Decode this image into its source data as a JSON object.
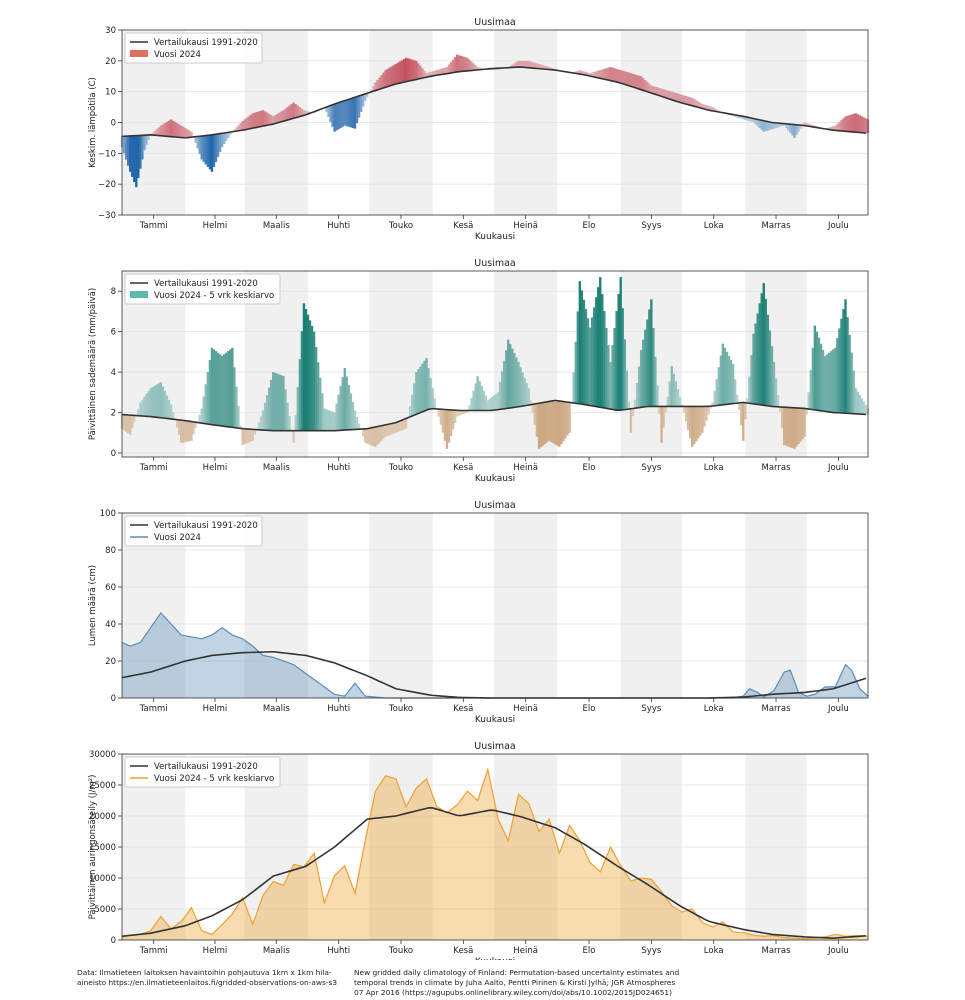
{
  "months": [
    "Tammi",
    "Helmi",
    "Maalis",
    "Huhti",
    "Touko",
    "Kesä",
    "Heinä",
    "Elo",
    "Syys",
    "Loka",
    "Marras",
    "Joulu"
  ],
  "footer": {
    "left": "Data: Ilmatieteen laitoksen havaintoihin pohjautuva 1km x 1km hila-aineisto https://en.ilmatieteenlaitos.fi/gridded-observations-on-aws-s3",
    "right": "New gridded daily climatology of Finland: Permutation-based uncertainty estimates and temporal trends in climate by Juha Aalto, Pentti Pirinen & Kirsti Jylhä; JGR Atmospheres 07 Apr 2016 (https://agupubs.onlinelibrary.wiley.com/doi/abs/10.1002/2015JD024651)"
  },
  "colors": {
    "reference": "#333333",
    "temp_warm": "#b2182b",
    "temp_cold": "#2166ac",
    "precip_wet": "#1a7f74",
    "precip_dry": "#a6611a",
    "snow": "#5b8db8",
    "sun": "#f0a030",
    "month_shade": "#f0f0f0"
  },
  "chart_data": [
    {
      "type": "area",
      "title": "Uusimaa",
      "xlabel": "Kuukausi",
      "ylabel": "Keskim. lämpötila (C)",
      "ylim": [
        -30,
        30
      ],
      "yticks": [
        -30,
        -20,
        -10,
        0,
        10,
        20,
        30
      ],
      "legend": "top-left",
      "series": [
        {
          "name": "Vertailukausi 1991-2020",
          "kind": "line",
          "x": [
            1,
            15,
            32,
            45,
            60,
            75,
            91,
            105,
            121,
            135,
            152,
            166,
            182,
            196,
            213,
            227,
            244,
            258,
            274,
            288,
            305,
            319,
            335,
            349,
            366
          ],
          "y": [
            -4.5,
            -4,
            -5,
            -4,
            -2.5,
            -0.5,
            2.5,
            6,
            9.5,
            12.5,
            15,
            16.5,
            17.5,
            18,
            17,
            15.5,
            13,
            10,
            6.5,
            4,
            2,
            0,
            -1,
            -2.5,
            -3.5
          ]
        },
        {
          "name": "Vuosi 2024",
          "kind": "anomaly",
          "x": [
            1,
            5,
            8,
            12,
            15,
            20,
            25,
            30,
            35,
            40,
            45,
            50,
            55,
            60,
            65,
            70,
            75,
            80,
            85,
            90,
            95,
            100,
            105,
            110,
            115,
            120,
            125,
            130,
            135,
            140,
            145,
            150,
            155,
            160,
            165,
            170,
            175,
            180,
            185,
            190,
            195,
            200,
            205,
            210,
            215,
            220,
            225,
            230,
            235,
            240,
            245,
            250,
            255,
            260,
            265,
            270,
            275,
            280,
            285,
            290,
            295,
            300,
            305,
            310,
            315,
            320,
            325,
            330,
            335,
            340,
            345,
            350,
            355,
            360,
            366
          ],
          "y": [
            -8,
            -16,
            -21,
            -9,
            -4,
            -1,
            1,
            -1,
            -3,
            -12,
            -16,
            -8,
            -3,
            0.5,
            3,
            4,
            2,
            4,
            6.5,
            4,
            3,
            5,
            -3,
            -1,
            -2,
            7,
            13,
            17,
            19,
            21,
            20,
            16,
            17,
            18,
            22,
            21,
            18,
            17,
            17,
            18,
            20,
            20,
            19,
            18,
            17,
            16,
            17,
            16,
            17,
            18,
            17,
            16,
            15,
            12,
            11,
            10,
            9,
            8,
            6,
            5,
            3,
            2,
            1,
            0,
            -3,
            -2,
            -1,
            -5,
            0,
            -1,
            -2,
            -1,
            2,
            3,
            1
          ]
        }
      ]
    },
    {
      "type": "area",
      "title": "Uusimaa",
      "xlabel": "Kuukausi",
      "ylabel": "Päivittäinen sademäärä (mm/päivä)",
      "ylim": [
        -0.2,
        9
      ],
      "yticks": [
        0,
        2,
        4,
        6,
        8
      ],
      "legend": "top-left",
      "series": [
        {
          "name": "Vertailukausi 1991-2020",
          "kind": "line",
          "x": [
            1,
            15,
            32,
            45,
            60,
            75,
            91,
            105,
            121,
            135,
            152,
            166,
            182,
            196,
            213,
            227,
            244,
            258,
            274,
            288,
            305,
            319,
            335,
            349,
            366
          ],
          "y": [
            1.9,
            1.8,
            1.6,
            1.4,
            1.2,
            1.1,
            1.1,
            1.1,
            1.2,
            1.5,
            2.2,
            2.1,
            2.1,
            2.3,
            2.6,
            2.4,
            2.1,
            2.3,
            2.3,
            2.3,
            2.5,
            2.3,
            2.2,
            2.0,
            1.9
          ]
        },
        {
          "name": "Vuosi 2024 - 5 vrk keskiarvo",
          "kind": "anomaly",
          "x": [
            1,
            5,
            10,
            15,
            20,
            25,
            30,
            35,
            40,
            45,
            50,
            55,
            60,
            65,
            70,
            75,
            80,
            85,
            90,
            95,
            100,
            105,
            110,
            115,
            120,
            125,
            130,
            135,
            140,
            145,
            150,
            155,
            160,
            165,
            170,
            175,
            180,
            185,
            190,
            195,
            200,
            205,
            210,
            215,
            220,
            225,
            230,
            235,
            240,
            245,
            250,
            255,
            260,
            265,
            270,
            275,
            280,
            285,
            290,
            295,
            300,
            305,
            310,
            315,
            320,
            325,
            330,
            335,
            340,
            345,
            350,
            355,
            360,
            366
          ],
          "y": [
            1.2,
            0.9,
            2.5,
            3.2,
            3.5,
            2.4,
            0.5,
            0.6,
            2.2,
            5.2,
            4.8,
            5.2,
            0.4,
            0.6,
            2.1,
            4,
            3.8,
            0.5,
            7.4,
            6,
            2.2,
            2,
            4.2,
            2.1,
            0.5,
            0.3,
            0.8,
            1,
            1.2,
            4,
            4.7,
            2.2,
            0.2,
            1.8,
            2,
            3.8,
            2.6,
            3,
            5.6,
            4.5,
            3.2,
            0.2,
            0.6,
            0.3,
            1,
            8.5,
            6.2,
            8.7,
            4.5,
            8.7,
            1,
            5.1,
            7.6,
            0.5,
            4.3,
            2.4,
            0.3,
            1,
            2.5,
            5.4,
            4.4,
            0.6,
            5.9,
            8.4,
            4.5,
            0.4,
            0.2,
            0.8,
            6.3,
            4.8,
            5.2,
            7.6,
            3.2,
            2.2
          ]
        }
      ]
    },
    {
      "type": "area",
      "title": "Uusimaa",
      "xlabel": "Kuukausi",
      "ylabel": "Lumen määrä (cm)",
      "ylim": [
        0,
        100
      ],
      "yticks": [
        0,
        20,
        40,
        60,
        80,
        100
      ],
      "legend": "top-left",
      "series": [
        {
          "name": "Vertailukausi 1991-2020",
          "kind": "line",
          "x": [
            1,
            15,
            32,
            45,
            60,
            75,
            91,
            105,
            121,
            135,
            152,
            166,
            182,
            196,
            213,
            227,
            244,
            258,
            274,
            288,
            305,
            319,
            335,
            349,
            366
          ],
          "y": [
            11,
            14,
            20,
            23,
            24.5,
            25,
            23,
            19,
            12,
            5,
            1.5,
            0.3,
            0,
            0,
            0,
            0,
            0,
            0,
            0,
            0,
            0.5,
            2,
            3,
            5,
            11
          ]
        },
        {
          "name": "Vuosi 2024",
          "kind": "area",
          "x": [
            1,
            5,
            10,
            15,
            20,
            25,
            30,
            35,
            40,
            45,
            50,
            55,
            60,
            65,
            70,
            75,
            80,
            85,
            90,
            95,
            100,
            105,
            110,
            115,
            120,
            130,
            140,
            300,
            305,
            308,
            312,
            315,
            320,
            325,
            328,
            332,
            336,
            340,
            345,
            350,
            355,
            358,
            362,
            366
          ],
          "y": [
            30,
            28,
            30,
            38,
            46,
            40,
            34,
            33,
            32,
            34,
            38,
            34,
            32,
            28,
            23,
            22,
            20,
            18,
            14,
            10,
            6,
            2,
            1,
            8,
            1,
            0,
            0,
            0,
            1,
            5,
            3,
            0.5,
            4,
            14,
            15,
            3,
            1,
            2,
            6,
            6,
            18,
            15,
            5,
            1
          ]
        }
      ]
    },
    {
      "type": "area",
      "title": "Uusimaa",
      "xlabel": "Kuukausi",
      "ylabel": "Päivittäinen auringonsäteily (J/m²)",
      "ylim": [
        0,
        30000
      ],
      "yticks": [
        0,
        5000,
        10000,
        15000,
        20000,
        25000,
        30000
      ],
      "legend": "top-left",
      "series": [
        {
          "name": "Vertailukausi 1991-2020",
          "kind": "line",
          "x": [
            1,
            15,
            32,
            45,
            60,
            75,
            91,
            105,
            121,
            135,
            152,
            166,
            182,
            196,
            213,
            227,
            244,
            258,
            274,
            288,
            305,
            319,
            335,
            349,
            366
          ],
          "y": [
            600,
            1100,
            2300,
            3900,
            6500,
            10300,
            11900,
            15000,
            19500,
            20000,
            21400,
            20000,
            21000,
            19900,
            18100,
            15500,
            11800,
            9000,
            5500,
            3000,
            1700,
            900,
            500,
            300,
            700
          ]
        },
        {
          "name": "Vuosi 2024 - 5 vrk keskiarvo",
          "kind": "area",
          "x": [
            1,
            5,
            10,
            15,
            20,
            25,
            30,
            35,
            40,
            45,
            50,
            55,
            60,
            65,
            70,
            75,
            80,
            85,
            90,
            95,
            100,
            105,
            110,
            115,
            120,
            125,
            130,
            135,
            140,
            145,
            150,
            155,
            160,
            165,
            170,
            175,
            180,
            185,
            190,
            195,
            200,
            205,
            210,
            215,
            220,
            225,
            230,
            235,
            240,
            245,
            250,
            255,
            260,
            265,
            270,
            275,
            280,
            285,
            290,
            295,
            300,
            305,
            310,
            315,
            320,
            325,
            330,
            335,
            340,
            345,
            350,
            355,
            360,
            366
          ],
          "y": [
            500,
            800,
            900,
            1500,
            3800,
            1800,
            3000,
            5200,
            1500,
            900,
            2500,
            4200,
            6800,
            2500,
            7200,
            9400,
            8800,
            12200,
            11800,
            14000,
            6000,
            10400,
            12000,
            7500,
            16000,
            24000,
            26500,
            26000,
            21500,
            24500,
            26000,
            21500,
            20500,
            21800,
            24000,
            22500,
            27500,
            19500,
            16000,
            23500,
            22000,
            17500,
            19500,
            14000,
            18500,
            16000,
            12500,
            11000,
            15000,
            12000,
            9500,
            10000,
            9800,
            7800,
            5500,
            4500,
            5000,
            2800,
            2100,
            2900,
            1300,
            1200,
            800,
            600,
            700,
            400,
            300,
            200,
            300,
            500,
            900,
            600,
            700,
            600
          ]
        }
      ]
    }
  ]
}
